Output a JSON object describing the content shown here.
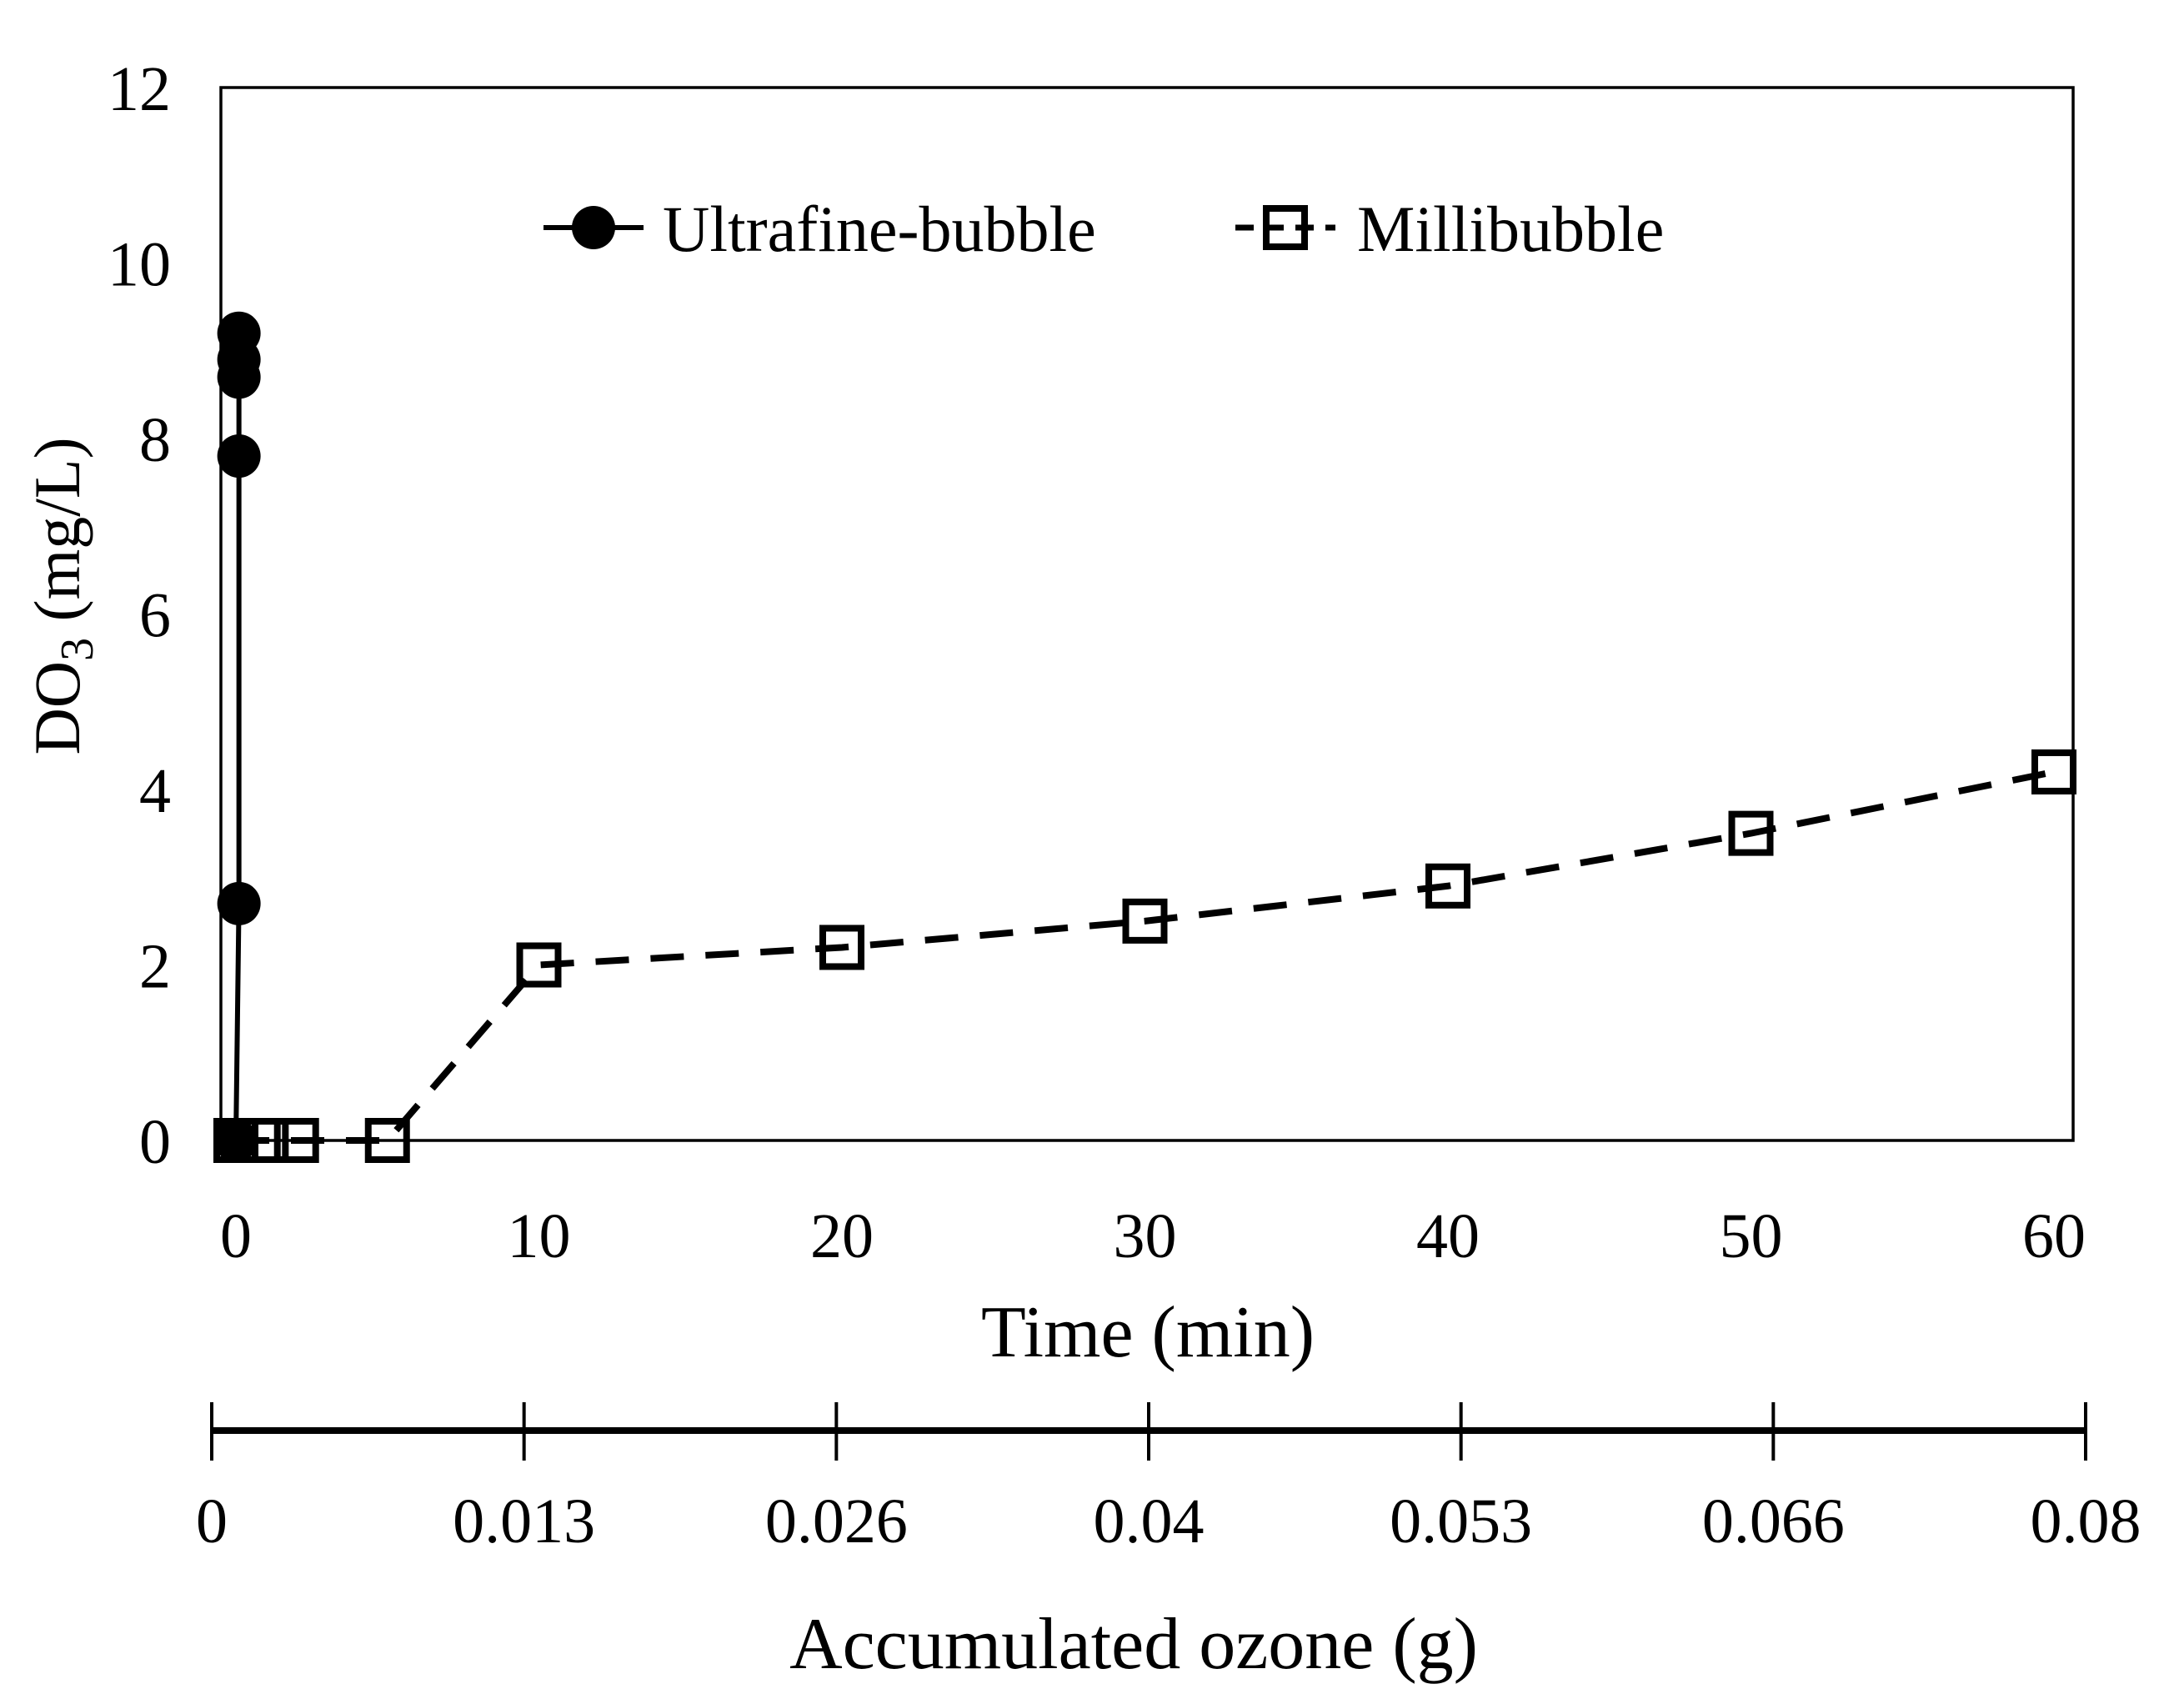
{
  "colors": {
    "foreground": "#000000",
    "background": "#ffffff"
  },
  "chart_data": {
    "type": "scatter",
    "title": "",
    "xlabel": "Time (min)",
    "ylabel": {
      "main": "DO",
      "sub": "3",
      "rest": " (mg/L)"
    },
    "x_axis": {
      "min": 0,
      "max": 60,
      "ticks": [
        0,
        10,
        20,
        30,
        40,
        50,
        60
      ]
    },
    "y_axis": {
      "min": 0,
      "max": 12,
      "ticks": [
        0,
        2,
        4,
        6,
        8,
        10,
        12
      ]
    },
    "grid": "off",
    "legend_position": "top-center-inside",
    "series": [
      {
        "name": "Ultrafine-bubble",
        "marker": "filled-circle",
        "line": "solid",
        "points": [
          [
            0,
            0
          ],
          [
            0.1,
            2.7
          ],
          [
            0.1,
            7.8
          ],
          [
            0.1,
            8.7
          ],
          [
            0.1,
            8.9
          ],
          [
            0.1,
            9.2
          ]
        ]
      },
      {
        "name": "Millibubble",
        "marker": "open-square",
        "line": "dashed",
        "points": [
          [
            0,
            0
          ],
          [
            1,
            0
          ],
          [
            2,
            0
          ],
          [
            5,
            0
          ],
          [
            10,
            2.0
          ],
          [
            20,
            2.2
          ],
          [
            30,
            2.5
          ],
          [
            40,
            2.9
          ],
          [
            50,
            3.5
          ],
          [
            60,
            4.2
          ]
        ]
      }
    ],
    "secondary_axis": {
      "label": "Accumulated ozone (g)",
      "tick_labels": [
        "0",
        "0.013",
        "0.026",
        "0.04",
        "0.053",
        "0.066",
        "0.08"
      ]
    }
  }
}
